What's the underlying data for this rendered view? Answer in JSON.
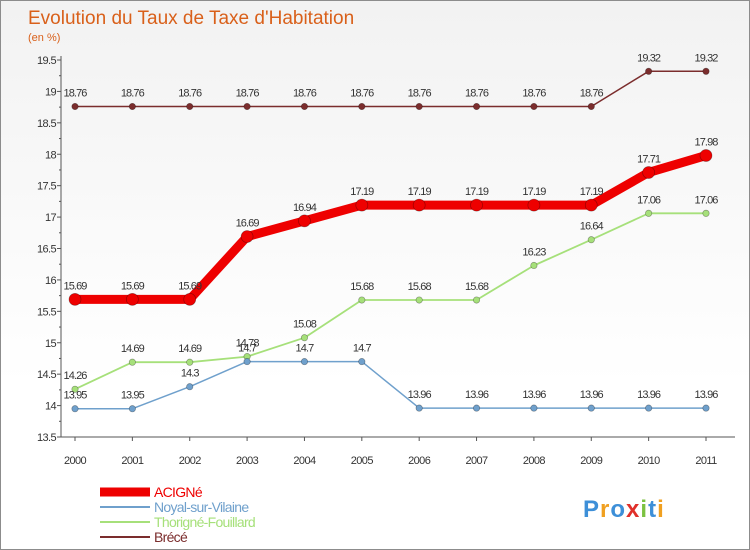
{
  "chart_data": {
    "type": "line",
    "title": "Evolution du Taux de Taxe d'Habitation",
    "subtitle": "(en %)",
    "x": [
      "2000",
      "2001",
      "2002",
      "2003",
      "2004",
      "2005",
      "2006",
      "2007",
      "2008",
      "2009",
      "2010",
      "2011"
    ],
    "ylim": [
      13.5,
      19.5
    ],
    "yticks": [
      "13.5",
      "14",
      "14.5",
      "15",
      "15.5",
      "16",
      "16.5",
      "17",
      "17.5",
      "18",
      "18.5",
      "19",
      "19.5"
    ],
    "grid": false,
    "legend_position": "bottom-left",
    "series": [
      {
        "name": "Brécé",
        "color": "#7b2d2d",
        "values": [
          18.76,
          18.76,
          18.76,
          18.76,
          18.76,
          18.76,
          18.76,
          18.76,
          18.76,
          18.76,
          19.32,
          19.32
        ],
        "labels": [
          "18.76",
          "18.76",
          "18.76",
          "18.76",
          "18.76",
          "18.76",
          "18.76",
          "18.76",
          "18.76",
          "18.76",
          "19.32",
          "19.32"
        ]
      },
      {
        "name": "Thorigné-Fouillard",
        "color": "#a6e07a",
        "values": [
          14.26,
          14.69,
          14.69,
          14.78,
          15.08,
          15.68,
          15.68,
          15.68,
          16.23,
          16.64,
          17.06,
          17.06
        ],
        "labels": [
          "14.26",
          "14.69",
          "14.69",
          "14.78",
          "15.08",
          "15.68",
          "15.68",
          "15.68",
          "16.23",
          "16.64",
          "17.06",
          "17.06"
        ]
      },
      {
        "name": "Noyal-sur-Vilaine",
        "color": "#6fa0cc",
        "values": [
          13.95,
          13.95,
          14.3,
          14.7,
          14.7,
          14.7,
          13.96,
          13.96,
          13.96,
          13.96,
          13.96,
          13.96
        ],
        "labels": [
          "13.95",
          "13.95",
          "14.3",
          "14.7",
          "14.7",
          "14.7",
          "13.96",
          "13.96",
          "13.96",
          "13.96",
          "13.96",
          "13.96"
        ]
      },
      {
        "name": "ACIGNé",
        "color": "#ee0000",
        "values": [
          15.69,
          15.69,
          15.69,
          16.69,
          16.94,
          17.19,
          17.19,
          17.19,
          17.19,
          17.19,
          17.71,
          17.98
        ],
        "labels": [
          "15.69",
          "15.69",
          "15.69",
          "16.69",
          "16.94",
          "17.19",
          "17.19",
          "17.19",
          "17.19",
          "17.19",
          "17.71",
          "17.98"
        ]
      }
    ],
    "legend": [
      {
        "name": "ACIGNé",
        "color": "#ee0000"
      },
      {
        "name": "Noyal-sur-Vilaine",
        "color": "#6fa0cc"
      },
      {
        "name": "Thorigné-Fouillard",
        "color": "#a6e07a"
      },
      {
        "name": "Brécé",
        "color": "#7b2d2d"
      }
    ]
  },
  "logo": {
    "text": "Proxiti",
    "colors": [
      "#3d8fd8",
      "#f0a020",
      "#3d8fd8",
      "#e0302a",
      "#7cc242",
      "#3d8fd8",
      "#f0a020"
    ]
  }
}
